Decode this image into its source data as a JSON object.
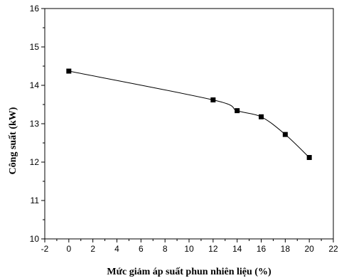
{
  "chart_data": {
    "type": "scatter",
    "title": "",
    "xlabel": "Mức giảm áp suất phun nhiên liệu (%)",
    "ylabel": "Công suất (kW)",
    "xlim": [
      -2,
      22
    ],
    "ylim": [
      10,
      16
    ],
    "xticks": [
      "-2",
      "0",
      "2",
      "4",
      "6",
      "8",
      "10",
      "12",
      "14",
      "16",
      "18",
      "20",
      "22"
    ],
    "yticks": [
      "10",
      "11",
      "12",
      "13",
      "14",
      "15",
      "16"
    ],
    "grid": false,
    "series": [
      {
        "x": [
          0,
          12,
          14,
          16,
          18,
          20
        ],
        "y": [
          14.37,
          13.62,
          13.34,
          13.18,
          12.72,
          12.12
        ],
        "marker": "square",
        "line": "smooth",
        "color": "#000000"
      }
    ]
  }
}
